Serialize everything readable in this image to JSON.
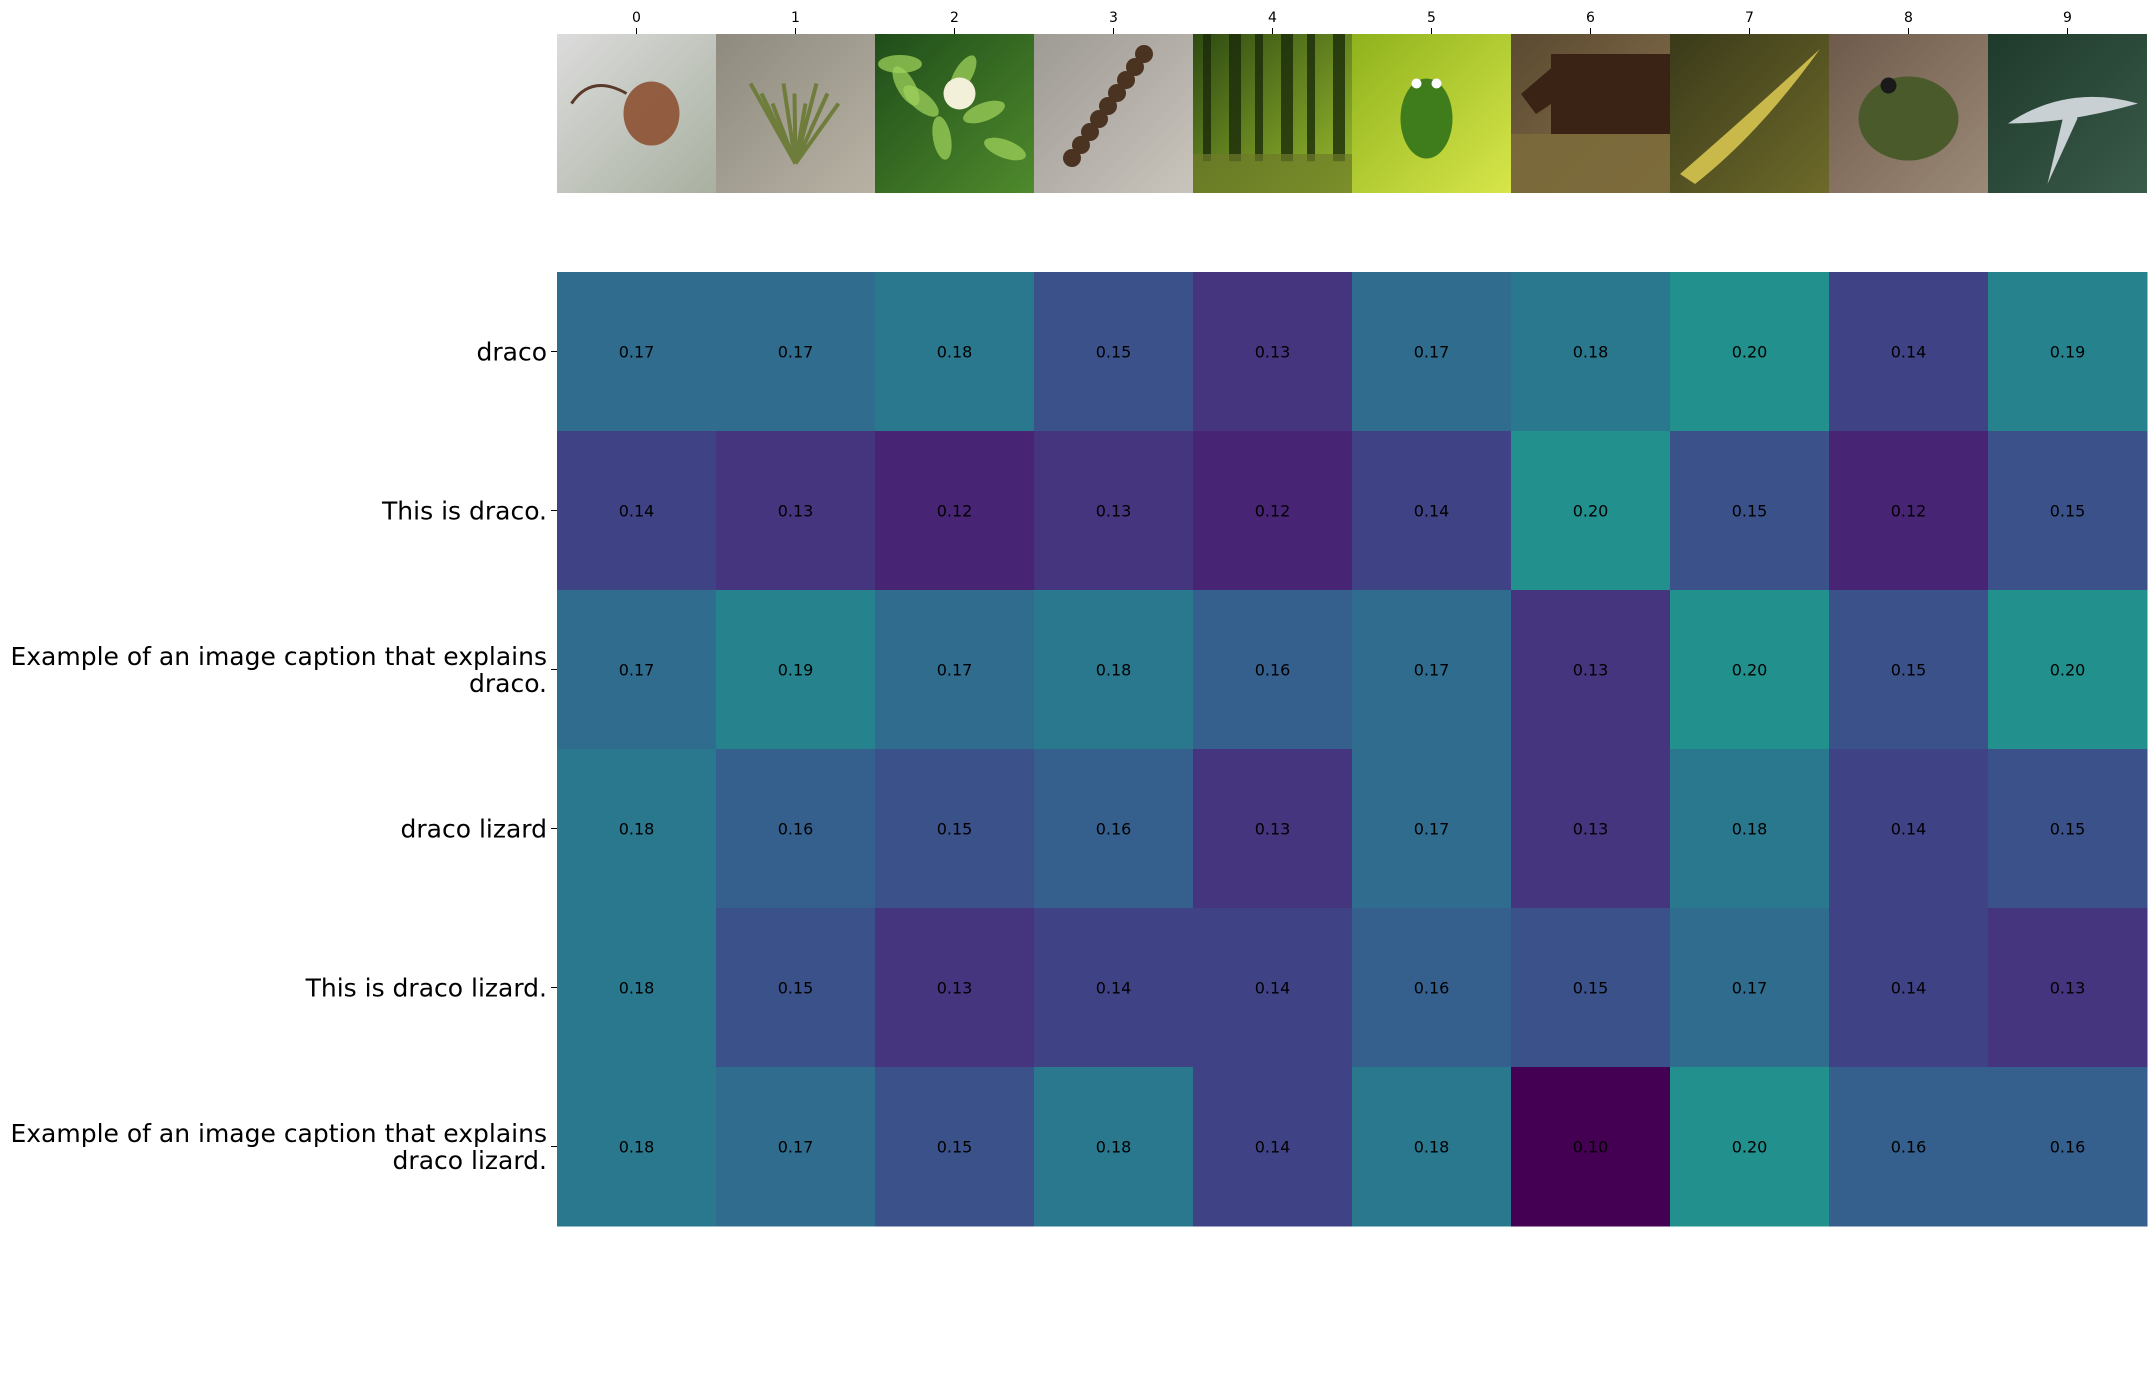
{
  "chart_data": {
    "type": "heatmap",
    "x_tick_labels": [
      "0",
      "1",
      "2",
      "3",
      "4",
      "5",
      "6",
      "7",
      "8",
      "9"
    ],
    "image_thumbnails": [
      "draco lizard on branch",
      "small green shrub on sandy ground",
      "leafy plant with white flower cluster",
      "centipede on gravel",
      "sunlit forest with trees",
      "green frog on leaf",
      "brown horse eating hay",
      "yellow spotted fish in water",
      "toad on dirt",
      "shark swimming underwater"
    ],
    "rows": [
      "draco",
      "This is draco.",
      "Example of an image caption that explains draco.",
      "draco lizard",
      "This is draco lizard.",
      "Example of an image caption that explains draco lizard."
    ],
    "row_label_lines": [
      [
        "draco"
      ],
      [
        "This is draco."
      ],
      [
        "Example of an image caption that explains",
        "draco."
      ],
      [
        "draco lizard"
      ],
      [
        "This is draco lizard."
      ],
      [
        "Example of an image caption that explains",
        "draco lizard."
      ]
    ],
    "values": [
      [
        0.17,
        0.17,
        0.18,
        0.15,
        0.13,
        0.17,
        0.18,
        0.2,
        0.14,
        0.19
      ],
      [
        0.14,
        0.13,
        0.12,
        0.13,
        0.12,
        0.14,
        0.2,
        0.15,
        0.12,
        0.15
      ],
      [
        0.17,
        0.19,
        0.17,
        0.18,
        0.16,
        0.17,
        0.13,
        0.2,
        0.15,
        0.2
      ],
      [
        0.18,
        0.16,
        0.15,
        0.16,
        0.13,
        0.17,
        0.13,
        0.18,
        0.14,
        0.15
      ],
      [
        0.18,
        0.15,
        0.13,
        0.14,
        0.14,
        0.16,
        0.15,
        0.17,
        0.14,
        0.13
      ],
      [
        0.18,
        0.17,
        0.15,
        0.18,
        0.14,
        0.18,
        0.1,
        0.2,
        0.16,
        0.16
      ]
    ],
    "colormap": "viridis",
    "value_range": [
      0.1,
      0.3
    ],
    "colors": {
      "viridis_stops": [
        "#440154",
        "#482878",
        "#3e4989",
        "#31688e",
        "#26828e",
        "#1f9e89",
        "#35b779",
        "#6ece58",
        "#b5de2b",
        "#fde725"
      ],
      "text": "#000000",
      "background": "#ffffff"
    },
    "grid": false,
    "legend": "none"
  }
}
